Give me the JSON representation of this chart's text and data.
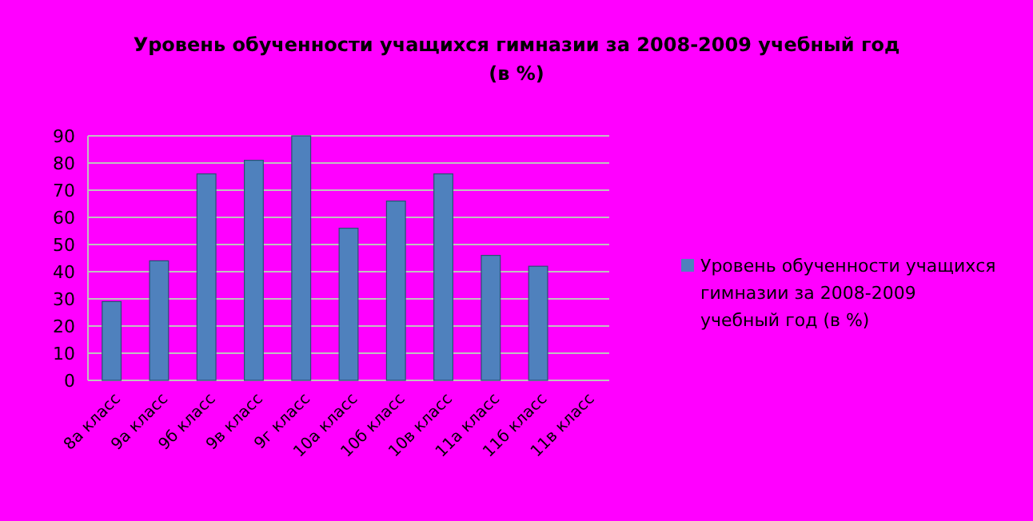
{
  "chart_data": {
    "type": "bar",
    "title": "Уровень обученности учащихся гимназии за 2008-2009 учебный год (в %)",
    "categories": [
      "8а класс",
      "9а класс",
      "9б класс",
      "9в класс",
      "9г класс",
      "10а класс",
      "10б класс",
      "10в класс",
      "11а класс",
      "11б класс",
      "11в класс"
    ],
    "series": [
      {
        "name": "Уровень обученности учащихся гимназии за 2008-2009 учебный год (в %)",
        "color": "#4f81bd",
        "values": [
          29,
          44,
          76,
          81,
          90,
          56,
          66,
          76,
          46,
          42,
          null
        ]
      }
    ],
    "ylim": [
      0,
      90
    ],
    "yticks": [
      0,
      10,
      20,
      30,
      40,
      50,
      60,
      70,
      80,
      90
    ],
    "grid": "y",
    "legend": "right"
  }
}
